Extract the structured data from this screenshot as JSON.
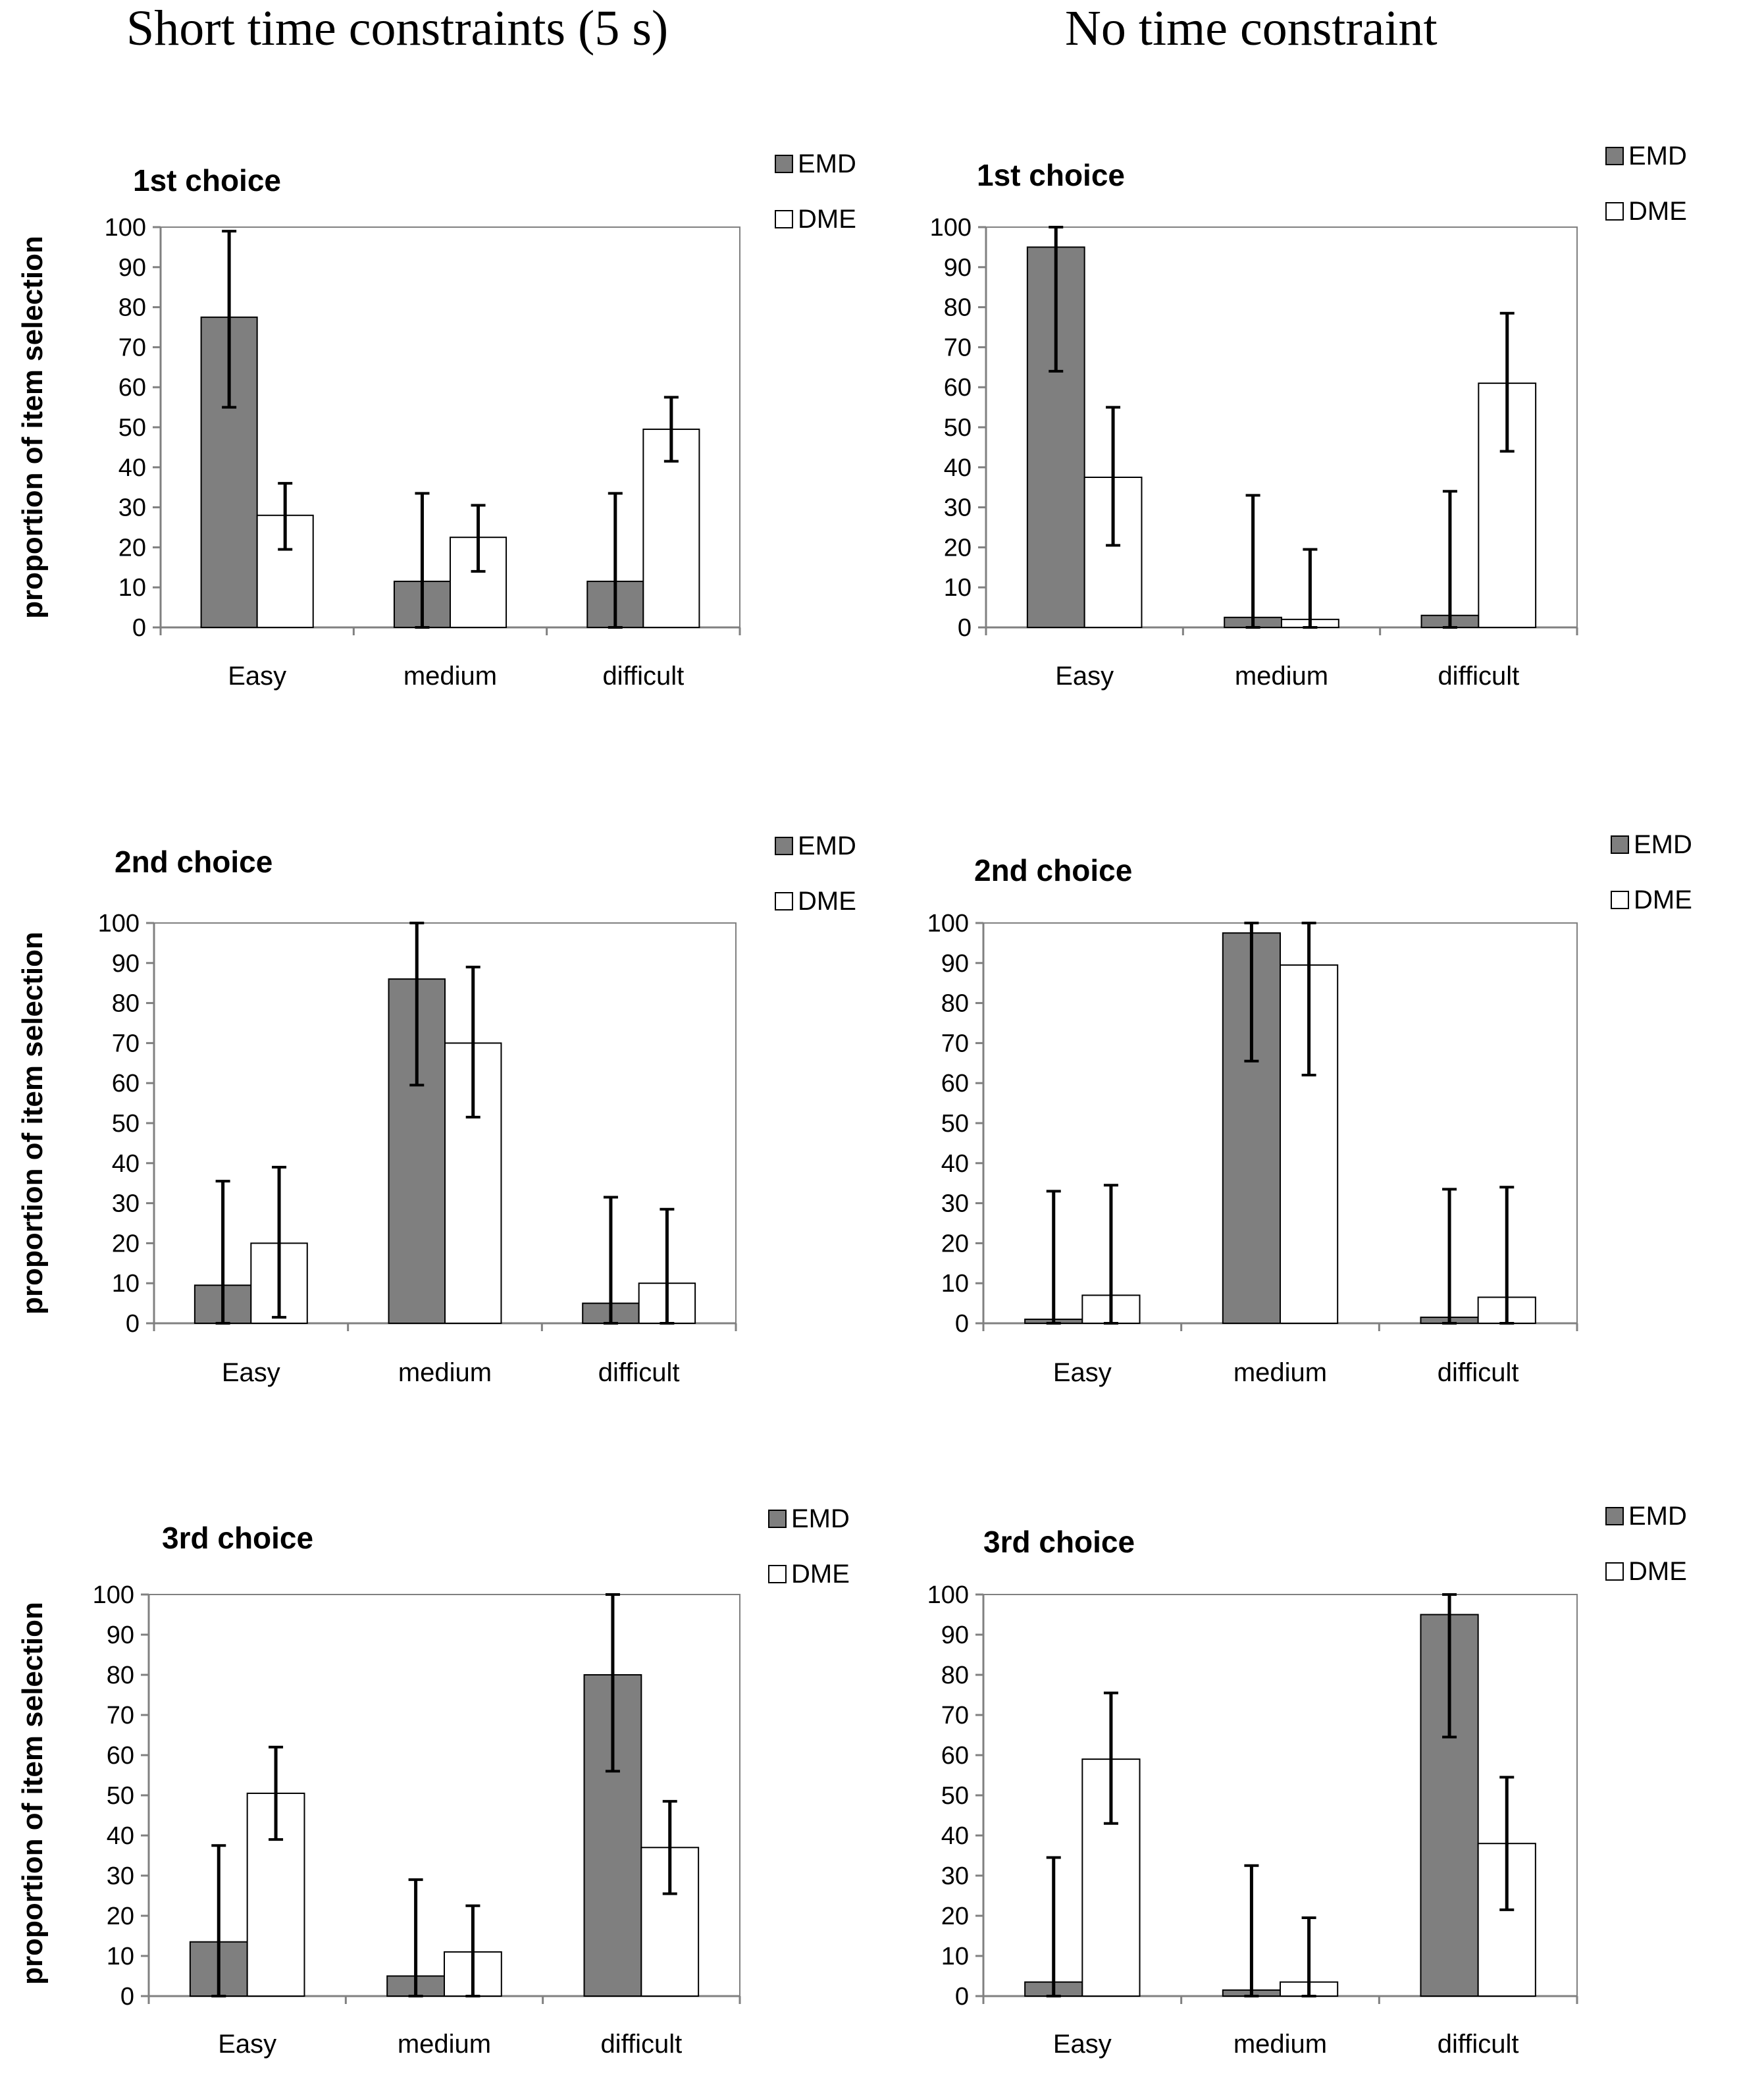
{
  "column_titles": {
    "left": "Short time constraints (5 s)",
    "right": "No time constraint"
  },
  "colors": {
    "emd": "#7f7f7f",
    "dme": "#ffffff",
    "axis": "#808080",
    "error": "#000000"
  },
  "chart_data": [
    {
      "type": "bar",
      "title": "1st choice",
      "group": "Short time constraints (5 s)",
      "categories": [
        "Easy",
        "medium",
        "difficult"
      ],
      "series": [
        {
          "name": "EMD",
          "values": [
            77.5,
            11.5,
            11.5
          ],
          "err_low": [
            55,
            0,
            0
          ],
          "err_high": [
            99,
            33.5,
            33.5
          ]
        },
        {
          "name": "DME",
          "values": [
            28,
            22.5,
            49.5
          ],
          "err_low": [
            19.5,
            14,
            41.5
          ],
          "err_high": [
            36,
            30.5,
            57.5
          ]
        }
      ],
      "ylabel": "proportion of item selection",
      "ylim": [
        0,
        100
      ],
      "yticks": [
        "0",
        "10",
        "20",
        "30",
        "40",
        "50",
        "60",
        "70",
        "80",
        "90",
        "100"
      ],
      "legend": "top-right"
    },
    {
      "type": "bar",
      "title": "1st choice",
      "group": "No time constraint",
      "categories": [
        "Easy",
        "medium",
        "difficult"
      ],
      "series": [
        {
          "name": "EMD",
          "values": [
            95,
            2.5,
            3
          ],
          "err_low": [
            64,
            0,
            0
          ],
          "err_high": [
            100,
            33,
            34
          ]
        },
        {
          "name": "DME",
          "values": [
            37.5,
            2,
            61
          ],
          "err_low": [
            20.5,
            0,
            44
          ],
          "err_high": [
            55,
            19.5,
            78.5
          ]
        }
      ],
      "ylabel": "",
      "ylim": [
        0,
        100
      ],
      "yticks": [
        "0",
        "10",
        "20",
        "30",
        "40",
        "50",
        "60",
        "70",
        "80",
        "90",
        "100"
      ],
      "legend": "top-right"
    },
    {
      "type": "bar",
      "title": "2nd choice",
      "group": "Short time constraints (5 s)",
      "categories": [
        "Easy",
        "medium",
        "difficult"
      ],
      "series": [
        {
          "name": "EMD",
          "values": [
            9.5,
            86,
            5
          ],
          "err_low": [
            0,
            59.5,
            0
          ],
          "err_high": [
            35.5,
            100,
            31.5
          ]
        },
        {
          "name": "DME",
          "values": [
            20,
            70,
            10
          ],
          "err_low": [
            1.5,
            51.5,
            0
          ],
          "err_high": [
            39,
            89,
            28.5
          ]
        }
      ],
      "ylabel": "proportion of item selection",
      "ylim": [
        0,
        100
      ],
      "yticks": [
        "0",
        "10",
        "20",
        "30",
        "40",
        "50",
        "60",
        "70",
        "80",
        "90",
        "100"
      ],
      "legend": "top-right"
    },
    {
      "type": "bar",
      "title": "2nd choice",
      "group": "No time constraint",
      "categories": [
        "Easy",
        "medium",
        "difficult"
      ],
      "series": [
        {
          "name": "EMD",
          "values": [
            1,
            97.5,
            1.5
          ],
          "err_low": [
            0,
            65.5,
            0
          ],
          "err_high": [
            33,
            100,
            33.5
          ]
        },
        {
          "name": "DME",
          "values": [
            7,
            89.5,
            6.5
          ],
          "err_low": [
            0,
            62,
            0
          ],
          "err_high": [
            34.5,
            100,
            34
          ]
        }
      ],
      "ylabel": "",
      "ylim": [
        0,
        100
      ],
      "yticks": [
        "0",
        "10",
        "20",
        "30",
        "40",
        "50",
        "60",
        "70",
        "80",
        "90",
        "100"
      ],
      "legend": "top-right"
    },
    {
      "type": "bar",
      "title": "3rd choice",
      "group": "Short time constraints (5 s)",
      "categories": [
        "Easy",
        "medium",
        "difficult"
      ],
      "series": [
        {
          "name": "EMD",
          "values": [
            13.5,
            5,
            80
          ],
          "err_low": [
            0,
            0,
            56
          ],
          "err_high": [
            37.5,
            29,
            100
          ]
        },
        {
          "name": "DME",
          "values": [
            50.5,
            11,
            37
          ],
          "err_low": [
            39,
            0,
            25.5
          ],
          "err_high": [
            62,
            22.5,
            48.5
          ]
        }
      ],
      "ylabel": "proportion of item selection",
      "ylim": [
        0,
        100
      ],
      "yticks": [
        "0",
        "10",
        "20",
        "30",
        "40",
        "50",
        "60",
        "70",
        "80",
        "90",
        "100"
      ],
      "legend": "top-right"
    },
    {
      "type": "bar",
      "title": "3rd choice",
      "group": "No time constraint",
      "categories": [
        "Easy",
        "medium",
        "difficult"
      ],
      "series": [
        {
          "name": "EMD",
          "values": [
            3.5,
            1.5,
            95
          ],
          "err_low": [
            0,
            0,
            64.5
          ],
          "err_high": [
            34.5,
            32.5,
            100
          ]
        },
        {
          "name": "DME",
          "values": [
            59,
            3.5,
            38
          ],
          "err_low": [
            43,
            0,
            21.5
          ],
          "err_high": [
            75.5,
            19.5,
            54.5
          ]
        }
      ],
      "ylabel": "",
      "ylim": [
        0,
        100
      ],
      "yticks": [
        "0",
        "10",
        "20",
        "30",
        "40",
        "50",
        "60",
        "70",
        "80",
        "90",
        "100"
      ],
      "legend": "top-right"
    }
  ]
}
